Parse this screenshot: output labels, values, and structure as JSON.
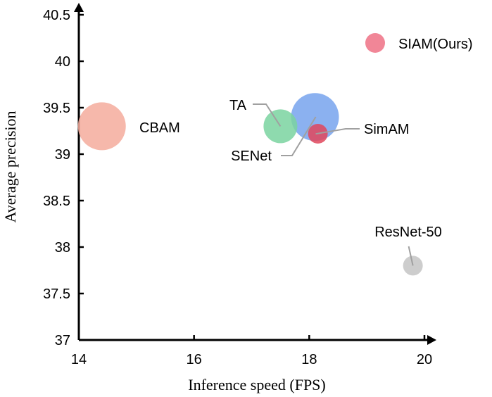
{
  "chart_data": {
    "type": "scatter",
    "title": "",
    "xlabel": "Inference speed (FPS)",
    "ylabel": "Average precision",
    "xlim": [
      14,
      20
    ],
    "ylim": [
      37,
      40.5
    ],
    "xticks": [
      "14",
      "16",
      "18",
      "20"
    ],
    "yticks": [
      "37",
      "37.5",
      "38",
      "38.5",
      "39",
      "39.5",
      "40",
      "40.5"
    ],
    "grid": false,
    "legend": {
      "position": "top-right",
      "label": "SIAM(Ours)",
      "color": "#f07f91"
    },
    "points": [
      {
        "name": "CBAM",
        "x": 14.4,
        "y": 39.3,
        "color": "#f5ab9c",
        "size": "large"
      },
      {
        "name": "SimAM",
        "x": 18.1,
        "y": 39.4,
        "color": "#7ea8ee",
        "size": "large"
      },
      {
        "name": "TA",
        "x": 17.5,
        "y": 39.3,
        "color": "#7ad4a0",
        "size": "medium"
      },
      {
        "name": "SENet",
        "x": 18.15,
        "y": 39.22,
        "color": "#e0465c",
        "size": "small"
      },
      {
        "name": "ResNet-50",
        "x": 19.8,
        "y": 37.8,
        "color": "#c4c4c4",
        "size": "small"
      }
    ]
  }
}
